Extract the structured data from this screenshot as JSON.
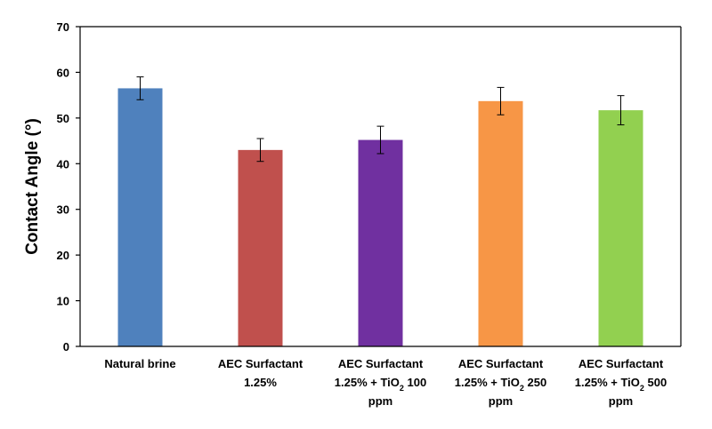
{
  "chart_data": {
    "type": "bar",
    "title": "",
    "xlabel": "",
    "ylabel": "Contact Angle (°)",
    "ylim": [
      0,
      70
    ],
    "ytick_step": 10,
    "grid": false,
    "legend": "none",
    "categories": [
      {
        "label": [
          "Natural brine"
        ],
        "label_html": [
          "Natural brine"
        ]
      },
      {
        "label": [
          "AEC Surfactant",
          "1.25%"
        ],
        "label_html": [
          "AEC Surfactant",
          "1.25%"
        ]
      },
      {
        "label": [
          "AEC Surfactant",
          "1.25% + TiO₂ 100",
          "ppm"
        ],
        "label_html": [
          "AEC Surfactant",
          "1.25% + TiO<tspan baseline-shift='sub' font-size='9'>2</tspan> 100",
          "ppm"
        ]
      },
      {
        "label": [
          "AEC Surfactant",
          "1.25% + TiO₂ 250",
          "ppm"
        ],
        "label_html": [
          "AEC Surfactant",
          "1.25% + TiO<tspan baseline-shift='sub' font-size='9'>2</tspan> 250",
          "ppm"
        ]
      },
      {
        "label": [
          "AEC Surfactant",
          "1.25% + TiO₂ 500",
          "ppm"
        ],
        "label_html": [
          "AEC Surfactant",
          "1.25% + TiO<tspan baseline-shift='sub' font-size='9'>2</tspan> 500",
          "ppm"
        ]
      }
    ],
    "values": [
      56.5,
      43.0,
      45.2,
      53.7,
      51.7
    ],
    "error": [
      2.5,
      2.5,
      3.0,
      3.0,
      3.2
    ],
    "colors": [
      "#4f81bd",
      "#c0504d",
      "#7030a0",
      "#f79646",
      "#92d050"
    ]
  }
}
